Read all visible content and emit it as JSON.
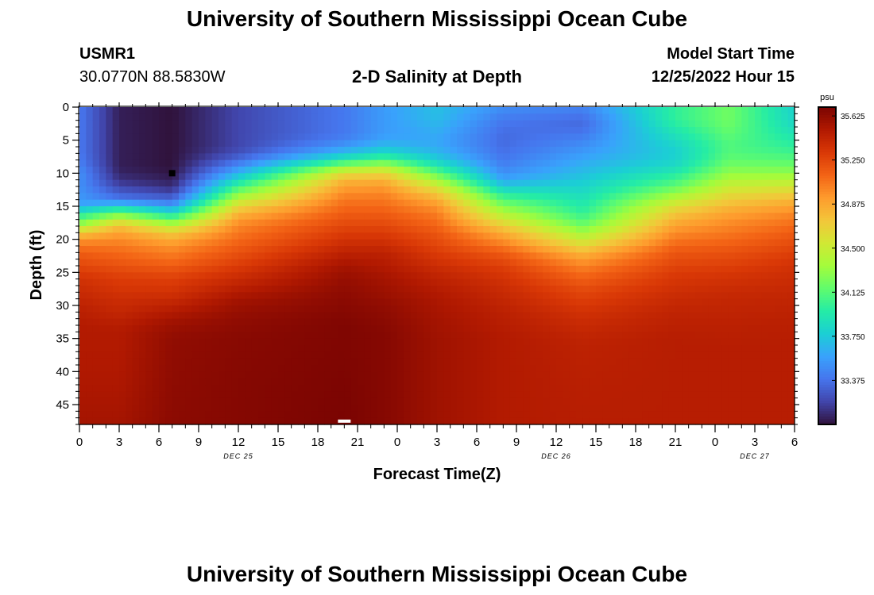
{
  "page": {
    "title_top": "University of Southern Mississippi Ocean Cube",
    "title_bottom": "University of Southern Mississippi Ocean Cube",
    "station_id": "USMR1",
    "location": "30.0770N  88.5830W",
    "plot_title": "2-D Salinity at Depth",
    "model_start_label": "Model Start Time",
    "model_start_value": "12/25/2022 Hour 15"
  },
  "colors": {
    "colormap": [
      "#30123b",
      "#4145ab",
      "#4675ed",
      "#39a2fc",
      "#1bcfd4",
      "#24eca6",
      "#61fc6c",
      "#a4fc3b",
      "#d1e834",
      "#f3c63a",
      "#fe9b2d",
      "#f36315",
      "#d93806",
      "#b11901",
      "#7a0402"
    ],
    "text": "#000000",
    "marker_dark": "#000000",
    "marker_light": "#ffffff"
  },
  "chart_data": {
    "type": "heatmap",
    "xlabel": "Forecast Time(Z)",
    "ylabel": "Depth (ft)",
    "x_hours_range": [
      0,
      54
    ],
    "y_depth_range": [
      0,
      48
    ],
    "x_tick_labels": [
      "0",
      "3",
      "6",
      "9",
      "12",
      "15",
      "18",
      "21",
      "0",
      "3",
      "6",
      "9",
      "12",
      "15",
      "18",
      "21",
      "0",
      "3",
      "6"
    ],
    "y_tick_values": [
      0,
      5,
      10,
      15,
      20,
      25,
      30,
      35,
      40,
      45
    ],
    "y_tick_labels": [
      "0",
      "5",
      "10",
      "15",
      "20",
      "25",
      "30",
      "35",
      "40",
      "45"
    ],
    "date_labels": [
      {
        "text": "DEC 25",
        "hour": 12
      },
      {
        "text": "DEC 26",
        "hour": 36
      },
      {
        "text": "DEC 27",
        "hour": 51
      }
    ],
    "colorbar": {
      "unit": "psu",
      "min": 33.0,
      "max": 35.7,
      "tick_values": [
        35.625,
        35.25,
        34.875,
        34.5,
        34.125,
        33.75,
        33.375
      ],
      "tick_labels": [
        "35.625",
        "35.250",
        "34.875",
        "34.500",
        "34.125",
        "33.750",
        "33.375"
      ]
    },
    "grid_resolution": {
      "hours_step": 0.5,
      "depth_step": 1
    },
    "depth_profile_columns": [
      {
        "hour": 0,
        "values": [
          33.4,
          33.4,
          33.4,
          33.4,
          33.4,
          33.4,
          33.4,
          33.4,
          33.42,
          33.45,
          33.5,
          33.5,
          33.5,
          33.52,
          33.55,
          33.6,
          33.95,
          34.1,
          34.4,
          34.7,
          34.95,
          35.05,
          35.15,
          35.2,
          35.25,
          35.3,
          35.35,
          35.38,
          35.4,
          35.42,
          35.45,
          35.47,
          35.48,
          35.5,
          35.5,
          35.5,
          35.5,
          35.52,
          35.55
        ]
      },
      {
        "hour": 3,
        "values": [
          33.05,
          33.05,
          33.05,
          33.05,
          33.05,
          33.05,
          33.05,
          33.05,
          33.05,
          33.05,
          33.08,
          33.12,
          33.2,
          33.3,
          33.4,
          33.8,
          34.15,
          34.5,
          34.75,
          34.9,
          34.98,
          35.05,
          35.1,
          35.15,
          35.2,
          35.25,
          35.3,
          35.32,
          35.35,
          35.38,
          35.4,
          35.42,
          35.45,
          35.48,
          35.5,
          35.5,
          35.5,
          35.52,
          35.55
        ]
      },
      {
        "hour": 7,
        "values": [
          33.0,
          33.0,
          33.0,
          33.0,
          33.0,
          33.0,
          33.0,
          33.0,
          33.0,
          33.0,
          33.02,
          33.05,
          33.1,
          33.2,
          33.35,
          33.55,
          33.85,
          34.15,
          34.45,
          34.7,
          34.85,
          34.95,
          35.02,
          35.08,
          35.15,
          35.22,
          35.28,
          35.32,
          35.35,
          35.4,
          35.45,
          35.5,
          35.55,
          35.58,
          35.6,
          35.62,
          35.62,
          35.63,
          35.64
        ]
      },
      {
        "hour": 12,
        "values": [
          33.2,
          33.2,
          33.2,
          33.2,
          33.2,
          33.2,
          33.2,
          33.25,
          33.35,
          33.5,
          33.65,
          33.85,
          34.05,
          34.25,
          34.45,
          34.65,
          34.8,
          34.92,
          35.0,
          35.05,
          35.1,
          35.15,
          35.2,
          35.25,
          35.3,
          35.35,
          35.4,
          35.45,
          35.5,
          35.55,
          35.58,
          35.6,
          35.62,
          35.63,
          35.64,
          35.65,
          35.65,
          35.66,
          35.66
        ]
      },
      {
        "hour": 20,
        "values": [
          33.4,
          33.4,
          33.4,
          33.4,
          33.4,
          33.45,
          33.55,
          33.7,
          33.95,
          34.3,
          34.6,
          34.8,
          34.9,
          34.98,
          35.05,
          35.1,
          35.15,
          35.2,
          35.25,
          35.3,
          35.35,
          35.4,
          35.45,
          35.5,
          35.55,
          35.58,
          35.6,
          35.62,
          35.63,
          35.64,
          35.65,
          35.66,
          35.67,
          35.68,
          35.68,
          35.68,
          35.68,
          35.69,
          35.7
        ]
      },
      {
        "hour": 23,
        "values": [
          33.55,
          33.55,
          33.55,
          33.55,
          33.55,
          33.6,
          33.7,
          33.85,
          34.1,
          34.4,
          34.65,
          34.82,
          34.92,
          35.0,
          35.05,
          35.1,
          35.15,
          35.2,
          35.25,
          35.3,
          35.35,
          35.4,
          35.45,
          35.48,
          35.5,
          35.53,
          35.55,
          35.57,
          35.58,
          35.6,
          35.62,
          35.63,
          35.64,
          35.65,
          35.66,
          35.66,
          35.66,
          35.66,
          35.66
        ]
      },
      {
        "hour": 27,
        "values": [
          33.7,
          33.7,
          33.68,
          33.65,
          33.62,
          33.6,
          33.62,
          33.68,
          33.78,
          33.95,
          34.15,
          34.35,
          34.55,
          34.72,
          34.85,
          34.95,
          35.02,
          35.08,
          35.12,
          35.18,
          35.22,
          35.26,
          35.3,
          35.34,
          35.38,
          35.42,
          35.45,
          35.48,
          35.5,
          35.52,
          35.53,
          35.54,
          35.55,
          35.56,
          35.56,
          35.57,
          35.57,
          35.57,
          35.57
        ]
      },
      {
        "hour": 32,
        "values": [
          33.5,
          33.45,
          33.4,
          33.38,
          33.35,
          33.35,
          33.35,
          33.38,
          33.4,
          33.45,
          33.5,
          33.6,
          33.75,
          33.95,
          34.1,
          34.25,
          34.4,
          34.55,
          34.7,
          34.85,
          34.95,
          35.05,
          35.15,
          35.22,
          35.28,
          35.32,
          35.35,
          35.38,
          35.4,
          35.42,
          35.44,
          35.46,
          35.47,
          35.48,
          35.49,
          35.5,
          35.5,
          35.5,
          35.5
        ]
      },
      {
        "hour": 38,
        "values": [
          33.45,
          33.4,
          33.35,
          33.35,
          33.4,
          33.45,
          33.5,
          33.55,
          33.6,
          33.65,
          33.7,
          33.75,
          33.8,
          33.85,
          33.9,
          33.95,
          34.0,
          34.1,
          34.2,
          34.35,
          34.5,
          34.65,
          34.8,
          34.92,
          35.0,
          35.08,
          35.14,
          35.2,
          35.25,
          35.28,
          35.32,
          35.35,
          35.38,
          35.4,
          35.42,
          35.44,
          35.45,
          35.47,
          35.48
        ]
      },
      {
        "hour": 45,
        "values": [
          34.0,
          34.0,
          34.0,
          33.95,
          33.9,
          33.85,
          33.8,
          33.78,
          33.8,
          33.85,
          33.95,
          34.05,
          34.15,
          34.3,
          34.45,
          34.6,
          34.72,
          34.82,
          34.9,
          34.98,
          35.05,
          35.12,
          35.18,
          35.22,
          35.26,
          35.3,
          35.33,
          35.35,
          35.38,
          35.4,
          35.42,
          35.44,
          35.45,
          35.46,
          35.47,
          35.48,
          35.48,
          35.48,
          35.48
        ]
      },
      {
        "hour": 49,
        "values": [
          34.2,
          34.2,
          34.2,
          34.18,
          34.15,
          34.12,
          34.1,
          34.12,
          34.15,
          34.22,
          34.3,
          34.4,
          34.5,
          34.6,
          34.7,
          34.8,
          34.88,
          34.95,
          35.0,
          35.05,
          35.1,
          35.15,
          35.2,
          35.24,
          35.28,
          35.32,
          35.35,
          35.38,
          35.4,
          35.42,
          35.43,
          35.44,
          35.45,
          35.46,
          35.47,
          35.47,
          35.48,
          35.48,
          35.48
        ]
      },
      {
        "hour": 54,
        "values": [
          33.8,
          33.8,
          33.82,
          33.85,
          33.9,
          33.95,
          34.0,
          34.05,
          34.12,
          34.2,
          34.3,
          34.42,
          34.55,
          34.68,
          34.8,
          34.9,
          34.98,
          35.05,
          35.1,
          35.15,
          35.2,
          35.24,
          35.28,
          35.32,
          35.35,
          35.37,
          35.39,
          35.4,
          35.42,
          35.43,
          35.44,
          35.45,
          35.46,
          35.47,
          35.47,
          35.48,
          35.48,
          35.48,
          35.48
        ]
      }
    ],
    "profile_depths": [
      0,
      1,
      2,
      3,
      4,
      5,
      6,
      7,
      8,
      9,
      10,
      11,
      12,
      13,
      14,
      15,
      16,
      17,
      18,
      19,
      20,
      21,
      22,
      23,
      24,
      25,
      26,
      27,
      28,
      29,
      30,
      31,
      32,
      33,
      34,
      35,
      36,
      42,
      48
    ],
    "markers": [
      {
        "name": "min-marker",
        "hour": 7,
        "depth": 10,
        "color": "#000000"
      },
      {
        "name": "max-marker",
        "hour": 20,
        "depth": 47.5,
        "color": "#ffffff"
      }
    ]
  }
}
